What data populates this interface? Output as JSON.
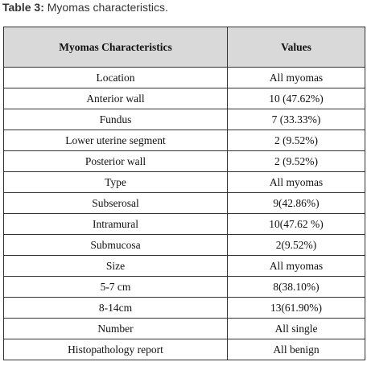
{
  "caption": {
    "label": "Table 3:",
    "text": " Myomas characteristics."
  },
  "table": {
    "headers": [
      "Myomas Characteristics",
      "Values"
    ],
    "rows": [
      [
        "Location",
        "All myomas"
      ],
      [
        "Anterior wall",
        "10 (47.62%)"
      ],
      [
        "Fundus",
        "7 (33.33%)"
      ],
      [
        "Lower uterine segment",
        "2 (9.52%)"
      ],
      [
        "Posterior wall",
        "2 (9.52%)"
      ],
      [
        "Type",
        "All myomas"
      ],
      [
        "Subserosal",
        "9(42.86%)"
      ],
      [
        "Intramural",
        "10(47.62 %)"
      ],
      [
        "Submucosa",
        "2(9.52%)"
      ],
      [
        "Size",
        "All myomas"
      ],
      [
        "5-7 cm",
        "8(38.10%)"
      ],
      [
        "8-14cm",
        "13(61.90%)"
      ],
      [
        "Number",
        "All single"
      ],
      [
        "Histopathology report",
        "All benign"
      ]
    ]
  }
}
